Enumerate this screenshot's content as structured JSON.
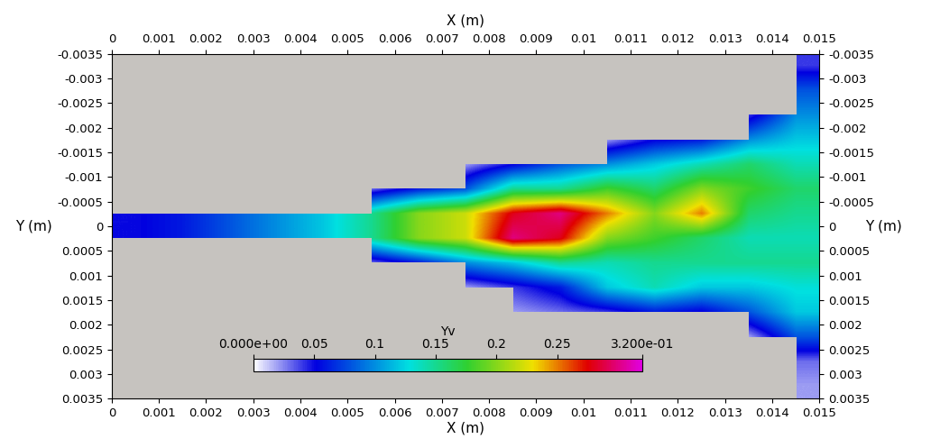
{
  "chart_data": {
    "type": "heatmap",
    "xlabel": "X (m)",
    "ylabel": "Y (m)",
    "xlim": [
      0,
      0.015
    ],
    "xticks": [
      0,
      0.001,
      0.002,
      0.003,
      0.004,
      0.005,
      0.006,
      0.007,
      0.008,
      0.009,
      0.01,
      0.011,
      0.012,
      0.013,
      0.014,
      0.015
    ],
    "ylim": [
      0.0035,
      -0.0035
    ],
    "yticks": [
      -0.0035,
      -0.003,
      -0.0025,
      -0.002,
      -0.0015,
      -0.001,
      -0.0005,
      0,
      0.0005,
      0.001,
      0.0015,
      0.002,
      0.0025,
      0.003,
      0.0035
    ],
    "colorbar_label": "Yv",
    "colorbar_range": [
      0,
      0.32
    ],
    "colorbar_ticks": [
      {
        "value": 0,
        "label": "0.000e+00"
      },
      0.05,
      0.1,
      0.15,
      0.2,
      0.25,
      {
        "value": 0.32,
        "label": "3.200e-01"
      }
    ],
    "cells": [
      [
        0,
        0,
        0,
        0,
        0,
        0,
        0,
        0,
        0,
        0,
        0,
        0,
        0,
        0,
        0.04
      ],
      [
        0,
        0,
        0,
        0,
        0,
        0,
        0,
        0,
        0,
        0,
        0,
        0,
        0,
        0,
        0.08
      ],
      [
        0,
        0,
        0,
        0,
        0,
        0,
        0,
        0,
        0,
        0,
        0,
        0,
        0,
        0.04,
        0.1
      ],
      [
        0,
        0,
        0,
        0,
        0,
        0,
        0,
        0,
        0.02,
        0,
        0.02,
        0.05,
        0.06,
        0.1,
        0.12
      ],
      [
        0,
        0,
        0,
        0,
        0,
        0,
        0,
        0.02,
        0.05,
        0.08,
        0.1,
        0.12,
        0.14,
        0.16,
        0.14
      ],
      [
        0,
        0,
        0,
        0,
        0,
        0.03,
        0.06,
        0.08,
        0.15,
        0.15,
        0.18,
        0.16,
        0.2,
        0.18,
        0.16
      ],
      [
        0.05,
        0.06,
        0.08,
        0.1,
        0.12,
        0.15,
        0.2,
        0.22,
        0.28,
        0.3,
        0.25,
        0.2,
        0.25,
        0.16,
        0.15
      ],
      [
        0.05,
        0.06,
        0.08,
        0.1,
        0.12,
        0.15,
        0.2,
        0.22,
        0.3,
        0.28,
        0.2,
        0.18,
        0.16,
        0.14,
        0.14
      ],
      [
        0,
        0,
        0,
        0,
        0,
        0.03,
        0.06,
        0.1,
        0.12,
        0.15,
        0.14,
        0.15,
        0.15,
        0.15,
        0.15
      ],
      [
        0,
        0,
        0,
        0,
        0,
        0,
        0,
        0.02,
        0.04,
        0.06,
        0.12,
        0.14,
        0.12,
        0.12,
        0.13
      ],
      [
        0,
        0,
        0,
        0,
        0,
        0,
        0,
        0,
        0.02,
        0.03,
        0.04,
        0.06,
        0.05,
        0.08,
        0.12
      ],
      [
        0,
        0,
        0,
        0,
        0,
        0,
        0,
        0,
        0,
        0,
        0,
        0,
        0,
        0.02,
        0.08
      ],
      [
        0,
        0,
        0,
        0,
        0,
        0,
        0,
        0,
        0,
        0,
        0,
        0,
        0,
        0,
        0.03
      ],
      [
        0,
        0,
        0,
        0,
        0,
        0,
        0,
        0,
        0,
        0,
        0,
        0,
        0,
        0,
        0.02
      ]
    ]
  }
}
